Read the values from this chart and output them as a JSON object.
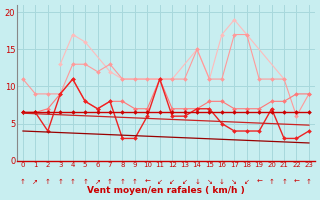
{
  "bg_color": "#c8eef0",
  "grid_color": "#a8d8dc",
  "xlabel": "Vent moyen/en rafales ( km/h )",
  "ylim": [
    0,
    21
  ],
  "yticks": [
    0,
    5,
    10,
    15,
    20
  ],
  "xticks": [
    0,
    1,
    2,
    3,
    4,
    5,
    6,
    7,
    8,
    9,
    10,
    11,
    12,
    13,
    14,
    15,
    16,
    17,
    18,
    19,
    20,
    21,
    22,
    23
  ],
  "series": [
    {
      "name": "lightest_pink",
      "color": "#ffbbbb",
      "lw": 0.8,
      "marker": "D",
      "ms": 2.0,
      "y": [
        null,
        null,
        null,
        13,
        17,
        16,
        null,
        12,
        11,
        null,
        null,
        null,
        11,
        null,
        15,
        11,
        17,
        19,
        17,
        null,
        null,
        11,
        null,
        null
      ]
    },
    {
      "name": "light_pink",
      "color": "#ff9999",
      "lw": 0.8,
      "marker": "D",
      "ms": 2.0,
      "y": [
        11,
        9,
        9,
        9,
        13,
        13,
        12,
        13,
        11,
        11,
        11,
        11,
        11,
        11,
        15,
        11,
        11,
        17,
        17,
        11,
        11,
        11,
        6,
        9
      ]
    },
    {
      "name": "medium_salmon",
      "color": "#ff7777",
      "lw": 0.8,
      "marker": "D",
      "ms": 2.0,
      "y": [
        6.5,
        6.5,
        7,
        9,
        11,
        8,
        7,
        8,
        8,
        7,
        7,
        11,
        7,
        7,
        7,
        8,
        8,
        7,
        7,
        7,
        8,
        8,
        9,
        9
      ]
    },
    {
      "name": "bright_red_volatile",
      "color": "#ee2222",
      "lw": 1.0,
      "marker": "D",
      "ms": 2.0,
      "y": [
        6.5,
        6.5,
        4,
        9,
        11,
        8,
        7,
        8,
        3,
        3,
        6,
        11,
        6,
        6,
        7,
        7,
        5,
        4,
        4,
        4,
        7,
        3,
        3,
        4
      ]
    },
    {
      "name": "dark_red_flat",
      "color": "#cc0000",
      "lw": 1.0,
      "marker": "D",
      "ms": 2.0,
      "y": [
        6.5,
        6.5,
        6.5,
        6.5,
        6.5,
        6.5,
        6.5,
        6.5,
        6.5,
        6.5,
        6.5,
        6.5,
        6.5,
        6.5,
        6.5,
        6.5,
        6.5,
        6.5,
        6.5,
        6.5,
        6.5,
        6.5,
        6.5,
        6.5
      ]
    },
    {
      "name": "trend_upper",
      "color": "#cc2222",
      "lw": 0.9,
      "marker": null,
      "ms": 0,
      "y": [
        6.4,
        6.33,
        6.26,
        6.19,
        6.12,
        6.05,
        5.98,
        5.91,
        5.84,
        5.77,
        5.7,
        5.63,
        5.56,
        5.49,
        5.42,
        5.35,
        5.28,
        5.21,
        5.14,
        5.07,
        5.0,
        4.93,
        4.86,
        4.79
      ]
    },
    {
      "name": "trend_lower",
      "color": "#990000",
      "lw": 0.9,
      "marker": null,
      "ms": 0,
      "y": [
        4.0,
        3.93,
        3.86,
        3.79,
        3.72,
        3.65,
        3.58,
        3.51,
        3.44,
        3.37,
        3.3,
        3.23,
        3.16,
        3.09,
        3.02,
        2.95,
        2.88,
        2.81,
        2.74,
        2.67,
        2.6,
        2.53,
        2.46,
        2.39
      ]
    }
  ],
  "wind_arrows": [
    "↑",
    "↗",
    "↑",
    "↑",
    "↑",
    "↑",
    "↗",
    "↑",
    "↑",
    "↑",
    "←",
    "↙",
    "↙",
    "↙",
    "↓",
    "↘",
    "↓",
    "↘",
    "↙",
    "←",
    "↑",
    "↑",
    "←",
    "↑"
  ]
}
